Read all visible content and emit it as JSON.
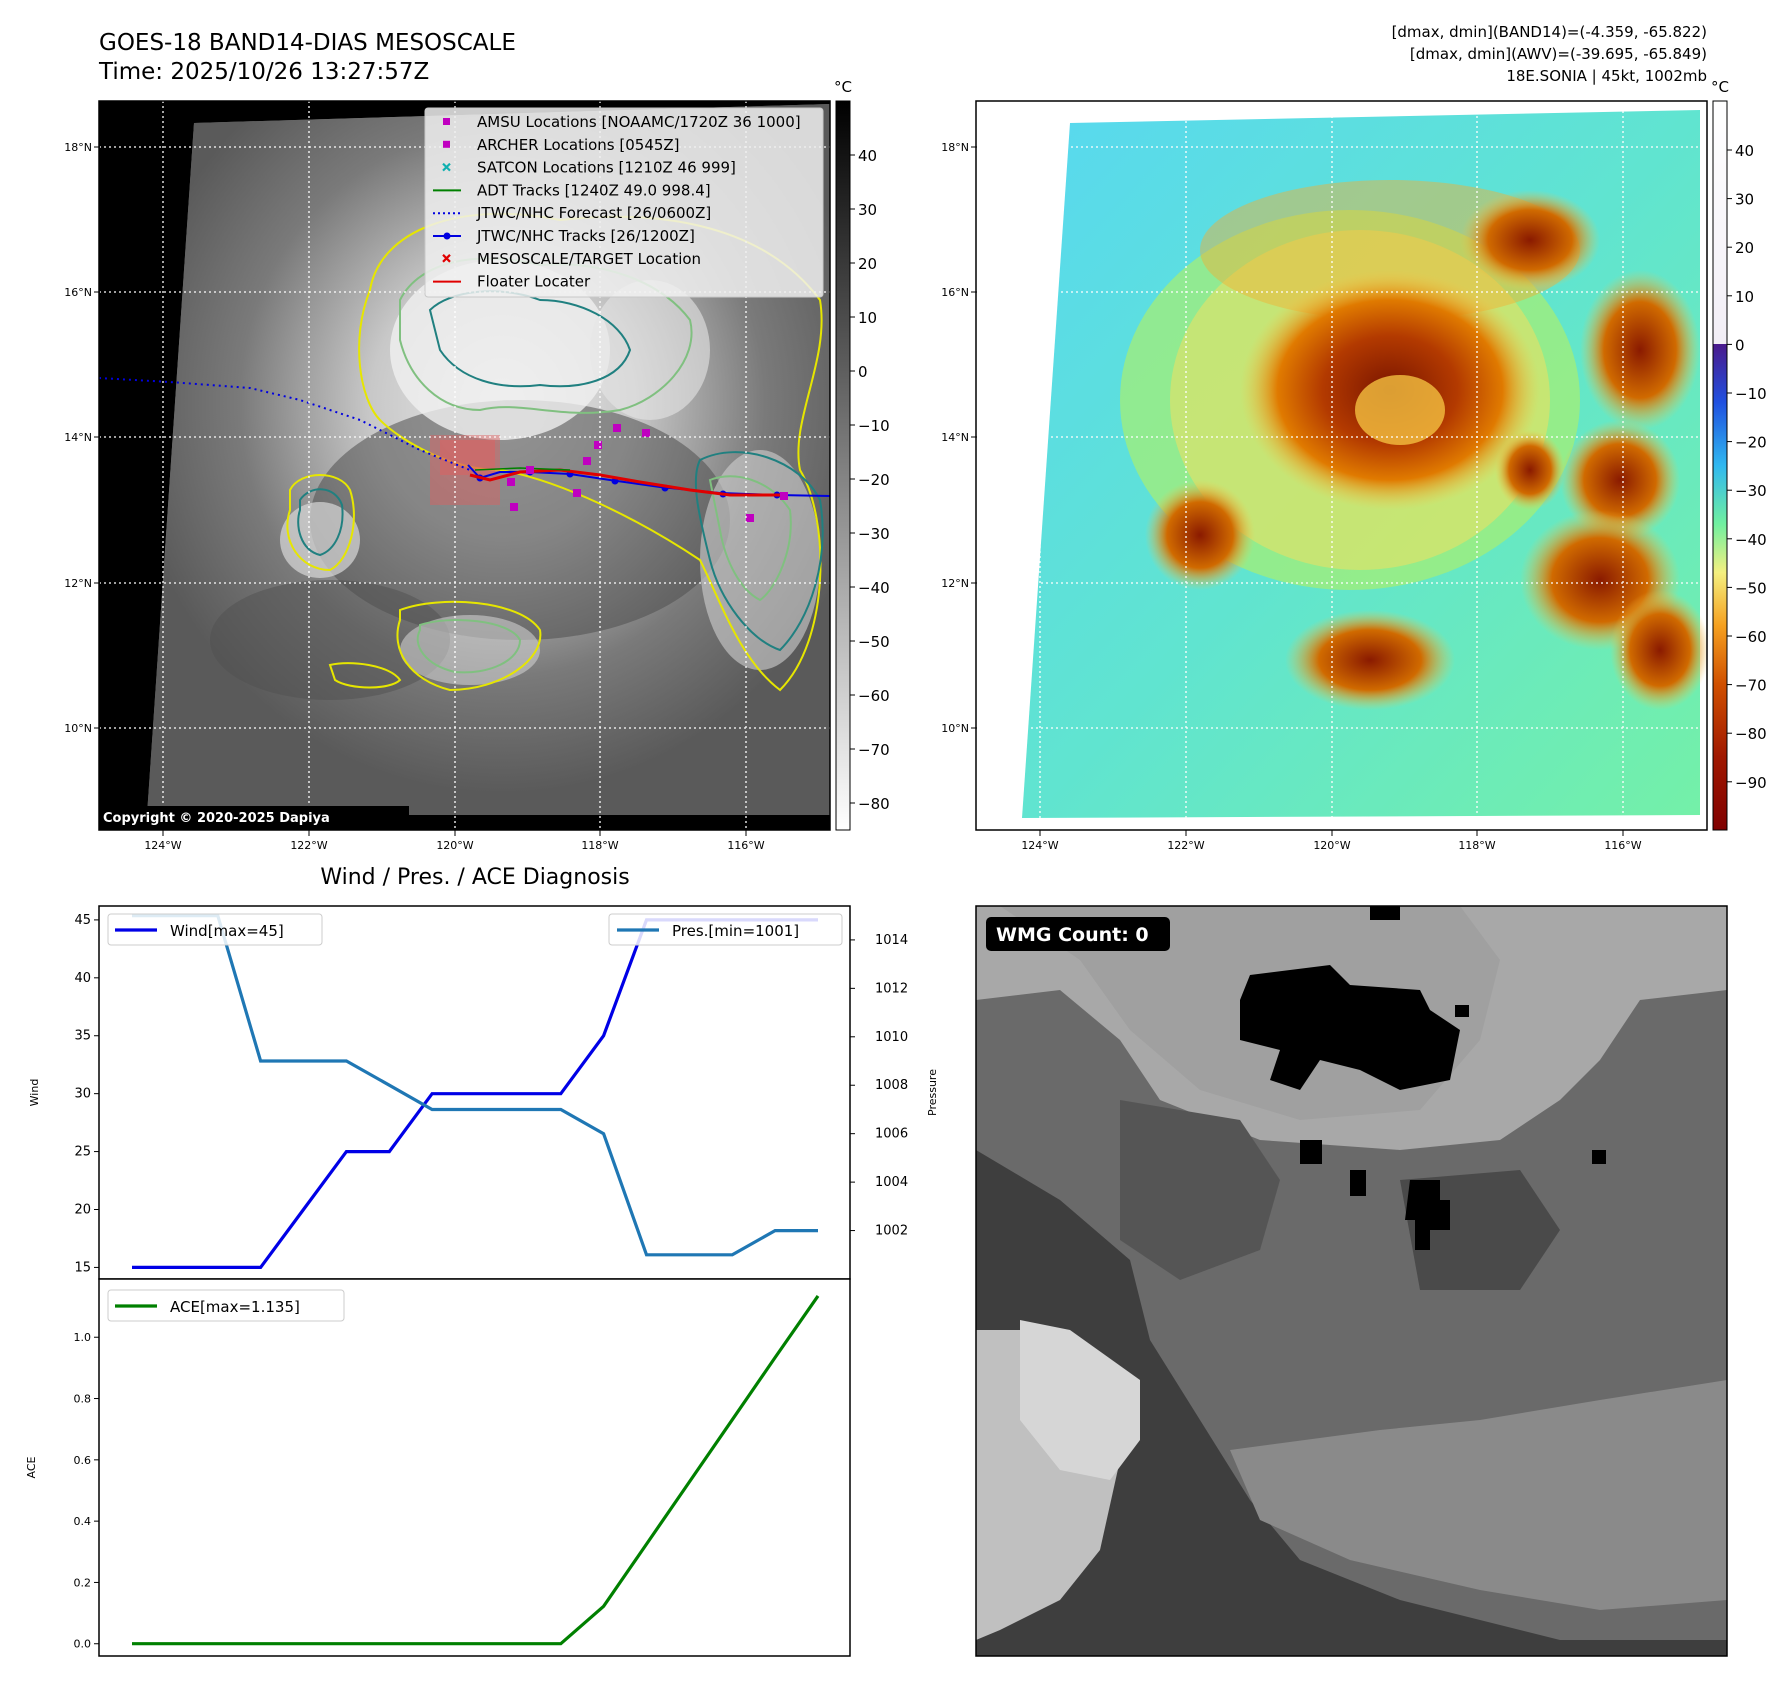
{
  "header": {
    "title_line1": "GOES-18 BAND14-DIAS MESOSCALE",
    "title_line2": "Time: 2025/10/26 13:27:57Z",
    "info_line1": "[dmax, dmin](BAND14)=(-4.359, -65.822)",
    "info_line2": "[dmax, dmin](AWV)=(-39.695, -65.849)",
    "info_line3": "18E.SONIA | 45kt, 1002mb"
  },
  "map": {
    "lat_labels": [
      "18°N",
      "16°N",
      "14°N",
      "12°N",
      "10°N"
    ],
    "lon_labels": [
      "124°W",
      "122°W",
      "120°W",
      "118°W",
      "116°W"
    ],
    "copyright": "Copyright © 2020-2025 Dapiya",
    "legend": [
      {
        "label": "AMSU Locations [NOAAMC/1720Z 36 1000]",
        "symbol": "square",
        "color": "#c000c0"
      },
      {
        "label": "ARCHER Locations [0545Z]",
        "symbol": "square",
        "color": "#c000c0"
      },
      {
        "label": "SATCON Locations [1210Z 46 999]",
        "symbol": "x",
        "color": "#10b0b0"
      },
      {
        "label": "ADT Tracks [1240Z 49.0 998.4]",
        "symbol": "line",
        "color": "#008000"
      },
      {
        "label": "JTWC/NHC Forecast [26/0600Z]",
        "symbol": "dotted",
        "color": "#0000e0"
      },
      {
        "label": "JTWC/NHC Tracks [26/1200Z]",
        "symbol": "linedot",
        "color": "#0000e0"
      },
      {
        "label": "MESOSCALE/TARGET Location",
        "symbol": "x",
        "color": "#e00000"
      },
      {
        "label": "Floater Locater",
        "symbol": "line",
        "color": "#e00000"
      }
    ],
    "colorbar_gray": {
      "unit": "°C",
      "ticks": [
        "40",
        "30",
        "20",
        "10",
        "0",
        "−10",
        "−20",
        "−30",
        "−40",
        "−50",
        "−60",
        "−70",
        "−80"
      ]
    },
    "colorbar_color": {
      "unit": "°C",
      "ticks": [
        "40",
        "30",
        "20",
        "10",
        "0",
        "−10",
        "−20",
        "−30",
        "−40",
        "−50",
        "−60",
        "−70",
        "−80",
        "−90"
      ]
    }
  },
  "chart_data": [
    {
      "type": "line",
      "title": "Wind / Pres. / ACE Diagnosis",
      "ylabel": "Wind",
      "ylabel2": "Pressure",
      "ylim": [
        14,
        46.2
      ],
      "ylim2": [
        1000.0,
        1015.4
      ],
      "yticks": [
        15,
        20,
        25,
        30,
        35,
        40,
        45
      ],
      "yticks2": [
        1002,
        1004,
        1006,
        1008,
        1010,
        1012,
        1014
      ],
      "x": [
        0,
        1,
        2,
        3,
        4,
        5,
        6,
        7,
        8,
        9,
        10,
        11,
        12,
        13,
        14,
        15,
        16
      ],
      "series": [
        {
          "name": "Wind[max=45]",
          "color": "#0000e6",
          "axis": "left",
          "values": [
            15,
            15,
            15,
            15,
            20,
            25,
            25,
            30,
            30,
            30,
            30,
            35,
            45,
            45,
            45,
            45,
            45
          ]
        },
        {
          "name": "Pres.[min=1001]",
          "color": "#1f77b4",
          "axis": "right",
          "values": [
            1015,
            1015,
            1015,
            1009,
            1009,
            1009,
            1008,
            1007,
            1007,
            1007,
            1007,
            1006,
            1001,
            1001,
            1001,
            1002,
            1002
          ]
        }
      ]
    },
    {
      "type": "line",
      "ylabel": "ACE",
      "ylim": [
        -0.04,
        1.19
      ],
      "yticks": [
        "0.0",
        "0.2",
        "0.4",
        "0.6",
        "0.8",
        "1.0"
      ],
      "x": [
        0,
        1,
        2,
        3,
        4,
        5,
        6,
        7,
        8,
        9,
        10,
        11,
        12,
        13,
        14,
        15,
        16
      ],
      "series": [
        {
          "name": "ACE[max=1.135]",
          "color": "#008000",
          "values": [
            0,
            0,
            0,
            0,
            0,
            0,
            0,
            0,
            0,
            0,
            0,
            0.122,
            0.325,
            0.528,
            0.731,
            0.934,
            1.135
          ]
        }
      ]
    }
  ],
  "wmg": {
    "label": "WMG Count: 0"
  }
}
